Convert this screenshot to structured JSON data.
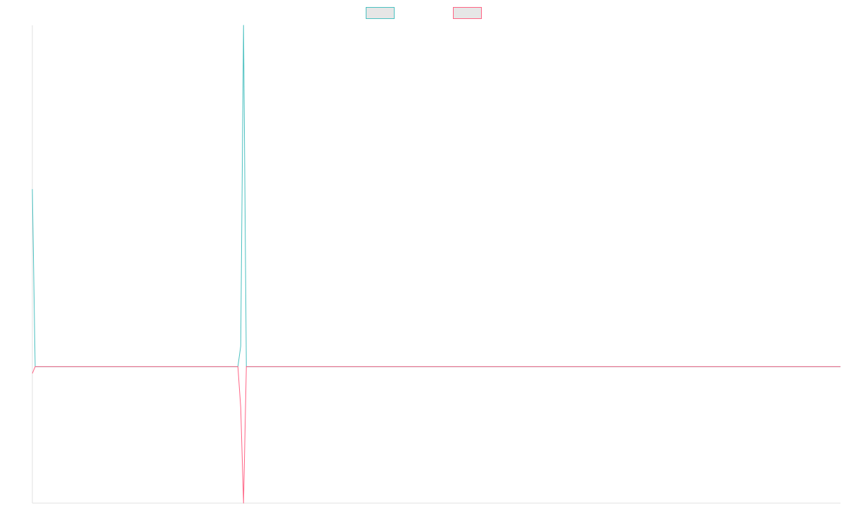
{
  "chart_data": {
    "type": "line",
    "title": "",
    "xlabel": "",
    "ylabel": "",
    "grid": false,
    "legend_position": "top-center",
    "x": [
      0,
      1,
      2,
      3,
      4,
      5,
      6,
      7,
      8,
      9,
      10,
      11,
      12,
      13,
      14,
      15,
      16,
      17,
      18,
      19,
      20,
      21,
      22,
      23,
      24,
      25,
      26,
      27,
      28,
      29,
      30,
      31,
      32,
      33,
      34,
      35,
      36,
      37,
      38,
      39,
      40,
      41,
      42,
      43,
      44,
      45,
      46,
      47,
      48,
      49,
      50,
      51,
      52,
      53,
      54,
      55,
      56,
      57,
      58,
      59,
      60,
      61,
      62,
      63,
      64,
      65,
      66,
      67,
      68,
      69,
      70,
      71,
      72,
      73,
      74,
      75,
      76,
      77,
      78,
      79,
      80,
      81,
      82,
      83,
      84,
      85,
      86,
      87,
      88,
      89,
      90,
      91,
      92,
      93,
      94,
      95,
      96,
      97,
      98,
      99,
      100,
      101,
      102,
      103,
      104,
      105,
      106,
      107,
      108,
      109,
      110,
      111,
      112,
      113,
      114,
      115,
      116,
      117,
      118,
      119,
      120,
      121,
      122,
      123,
      124,
      125,
      126,
      127,
      128,
      129,
      130,
      131,
      132,
      133,
      134,
      135,
      136,
      137,
      138,
      139,
      140,
      141,
      142,
      143,
      144,
      145,
      146,
      147,
      148,
      149,
      150,
      151,
      152,
      153,
      154,
      155,
      156,
      157,
      158,
      159,
      160,
      161,
      162,
      163,
      164,
      165,
      166,
      167,
      168,
      169,
      170,
      171,
      172,
      173,
      174,
      175,
      176,
      177,
      178,
      179,
      180,
      181,
      182,
      183,
      184,
      185,
      186,
      187,
      188,
      189,
      190,
      191,
      192,
      193,
      194,
      195,
      196,
      197,
      198,
      199,
      200,
      201,
      202,
      203,
      204,
      205,
      206,
      207,
      208,
      209,
      210,
      211,
      212,
      213,
      214,
      215,
      216,
      217,
      218,
      219,
      220,
      221,
      222,
      223,
      224,
      225,
      226,
      227,
      228,
      229,
      230,
      231,
      232,
      233,
      234,
      235,
      236,
      237,
      238,
      239,
      240,
      241,
      242,
      243,
      244,
      245,
      246,
      247,
      248,
      249,
      250,
      251,
      252,
      253,
      254,
      255,
      256,
      257,
      258,
      259,
      260,
      261,
      262,
      263,
      264,
      265,
      266,
      267,
      268,
      269,
      270,
      271,
      272,
      273,
      274,
      275,
      276,
      277,
      278,
      279,
      280,
      281,
      282,
      283,
      284,
      285,
      286,
      287
    ],
    "ylim": [
      -0.4,
      1
    ],
    "series": [
      {
        "color": "#4bc0c0",
        "points": [
          [
            0,
            0.52
          ],
          [
            1,
            0.0
          ],
          [
            73,
            0.0
          ],
          [
            74,
            0.06
          ],
          [
            75,
            1.0
          ],
          [
            76,
            0.0
          ],
          [
            287,
            0.0
          ]
        ]
      },
      {
        "color": "#ff6384",
        "points": [
          [
            0,
            -0.02
          ],
          [
            1,
            0.0
          ],
          [
            73,
            0.0
          ],
          [
            74,
            -0.12
          ],
          [
            75,
            -0.4
          ],
          [
            76,
            0.0
          ],
          [
            287,
            0.0
          ]
        ]
      }
    ]
  }
}
